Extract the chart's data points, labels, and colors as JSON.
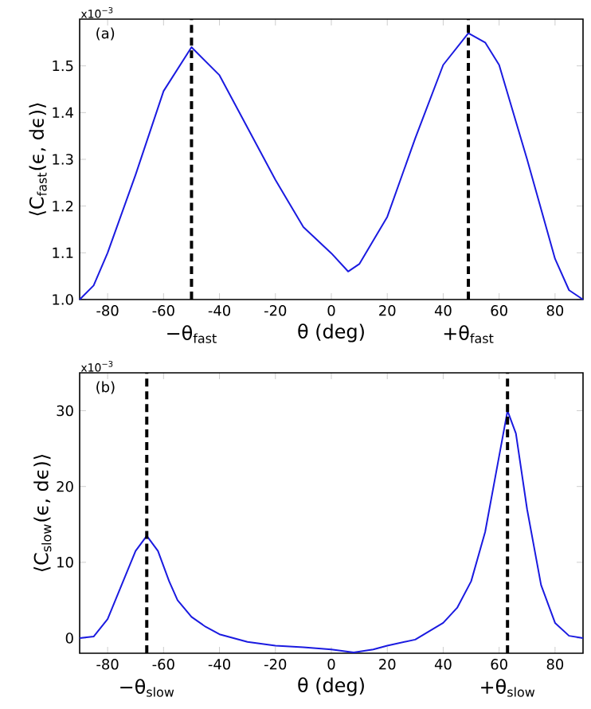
{
  "chart_data": [
    {
      "type": "line",
      "xlabel": "θ (deg)",
      "ylabel": "⟨C$_{fast}$(ϵ, dϵ)⟩",
      "annotations": [
        "(a)",
        "x10$^{−3}$"
      ],
      "x": [
        -90,
        -85,
        -80,
        -70,
        -60,
        -50,
        -40,
        -30,
        -20,
        -10,
        0,
        6,
        10,
        20,
        30,
        40,
        49,
        55,
        60,
        70,
        80,
        85,
        90
      ],
      "series": [
        {
          "color": "#1a1ae0",
          "values": [
            1.0,
            1.03,
            1.1,
            1.267,
            1.446,
            1.54,
            1.48,
            1.368,
            1.256,
            1.155,
            1.099,
            1.06,
            1.076,
            1.177,
            1.345,
            1.502,
            1.57,
            1.55,
            1.502,
            1.3,
            1.087,
            1.02,
            1.0
          ]
        }
      ],
      "xlim": [
        -90,
        90
      ],
      "xticks": [
        -80,
        -60,
        -40,
        -20,
        0,
        20,
        40,
        60,
        80
      ],
      "ylim": [
        1.0,
        1.6
      ],
      "yticks": [
        {
          "value": 1.0,
          "label": "1.0"
        },
        {
          "value": 1.1,
          "label": "1.1"
        },
        {
          "value": 1.2,
          "label": "1.2"
        },
        {
          "value": 1.3,
          "label": "1.3"
        },
        {
          "value": 1.4,
          "label": "1.4"
        },
        {
          "value": 1.5,
          "label": "1.5"
        }
      ],
      "ref_lines": [
        {
          "axis": "x",
          "value": -50,
          "label": "−θ$_{fast}$",
          "color": "#000000",
          "line_style": "dashed"
        },
        {
          "axis": "x",
          "value": 49,
          "label": "+θ$_{fast}$",
          "color": "#000000",
          "line_style": "dashed"
        }
      ]
    },
    {
      "type": "line",
      "xlabel": "θ (deg)",
      "ylabel": "⟨C$_{slow}$(ϵ, dϵ)⟩",
      "annotations": [
        "(b)",
        "x10$^{−3}$"
      ],
      "x": [
        -90,
        -85,
        -80,
        -75,
        -70,
        -66,
        -62,
        -58,
        -55,
        -50,
        -45,
        -40,
        -30,
        -20,
        -10,
        0,
        8,
        15,
        20,
        30,
        40,
        45,
        50,
        55,
        60,
        63,
        66,
        70,
        75,
        80,
        85,
        90
      ],
      "series": [
        {
          "color": "#1a1ae0",
          "values": [
            0,
            0.2,
            2.5,
            7,
            11.5,
            13.5,
            11.5,
            7.5,
            5,
            2.8,
            1.5,
            0.5,
            -0.5,
            -1,
            -1.2,
            -1.5,
            -1.9,
            -1.5,
            -1,
            -0.2,
            2,
            4,
            7.5,
            14,
            24,
            30,
            27,
            17,
            7,
            2,
            0.3,
            0
          ]
        }
      ],
      "xlim": [
        -90,
        90
      ],
      "xticks": [
        -80,
        -60,
        -40,
        -20,
        0,
        20,
        40,
        60,
        80
      ],
      "ylim": [
        -2,
        35
      ],
      "yticks": [
        0,
        10,
        20,
        30
      ],
      "ref_lines": [
        {
          "axis": "x",
          "value": -66,
          "label": "−θ$_{slow}$",
          "color": "#000000",
          "line_style": "dashed"
        },
        {
          "axis": "x",
          "value": 63,
          "label": "+θ$_{slow}$",
          "color": "#000000",
          "line_style": "dashed"
        }
      ]
    }
  ]
}
